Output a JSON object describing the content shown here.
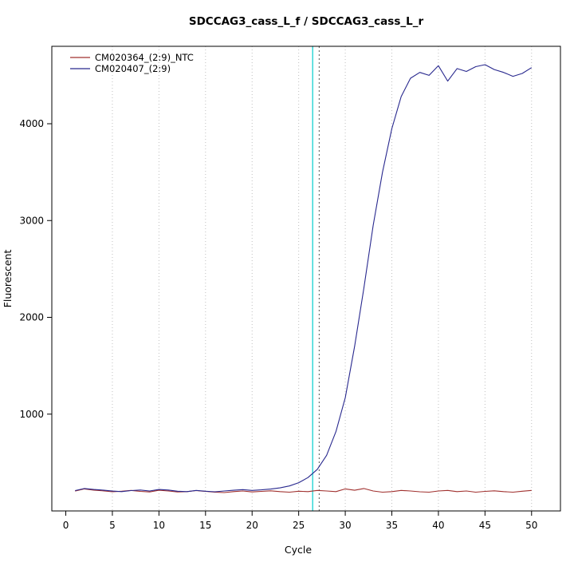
{
  "window": {
    "background": "#ffffff"
  },
  "chart_data": {
    "type": "line",
    "title": "SDCCAG3_cass_L_f / SDCCAG3_cass_L_r",
    "xlabel": "Cycle",
    "ylabel": "Fluorescent",
    "xlim": [
      -1.5,
      53.1
    ],
    "ylim": [
      0,
      4800
    ],
    "xticks": [
      0,
      5,
      10,
      15,
      20,
      25,
      30,
      35,
      40,
      45,
      50
    ],
    "yticks": [
      1000,
      2000,
      3000,
      4000
    ],
    "grid": {
      "vertical_at": [
        5,
        10,
        15,
        20,
        25,
        30,
        35,
        40,
        45,
        50
      ],
      "color": "#bfbfbf",
      "style": "dotted"
    },
    "threshold_line": {
      "x": 26.5,
      "color": "#00cdcd",
      "style": "solid"
    },
    "ct_line": {
      "x": 27.2,
      "color": "#555555",
      "style": "dotted"
    },
    "legend_position": "top-left",
    "x": [
      1,
      2,
      3,
      4,
      5,
      6,
      7,
      8,
      9,
      10,
      11,
      12,
      13,
      14,
      15,
      16,
      17,
      18,
      19,
      20,
      21,
      22,
      23,
      24,
      25,
      26,
      27,
      28,
      29,
      30,
      31,
      32,
      33,
      34,
      35,
      36,
      37,
      38,
      39,
      40,
      41,
      42,
      43,
      44,
      45,
      46,
      47,
      48,
      49,
      50
    ],
    "series": [
      {
        "name": "CM020364_(2:9)_NTC",
        "color": "#a0302e",
        "values": [
          205,
          228,
          215,
          208,
          198,
          204,
          212,
          202,
          196,
          214,
          206,
          196,
          200,
          210,
          202,
          194,
          190,
          200,
          206,
          196,
          202,
          208,
          200,
          194,
          204,
          200,
          212,
          206,
          200,
          228,
          214,
          232,
          206,
          194,
          200,
          212,
          206,
          198,
          194,
          206,
          212,
          200,
          206,
          194,
          202,
          208,
          200,
          194,
          204,
          212
        ]
      },
      {
        "name": "CM020407_(2:9)",
        "color": "#28288e",
        "values": [
          210,
          232,
          222,
          215,
          205,
          200,
          210,
          216,
          206,
          222,
          216,
          204,
          200,
          212,
          204,
          198,
          206,
          214,
          220,
          212,
          218,
          226,
          238,
          258,
          292,
          345,
          430,
          575,
          820,
          1170,
          1700,
          2300,
          2950,
          3500,
          3950,
          4280,
          4470,
          4530,
          4500,
          4600,
          4440,
          4570,
          4540,
          4590,
          4610,
          4560,
          4530,
          4490,
          4520,
          4580
        ]
      }
    ]
  }
}
